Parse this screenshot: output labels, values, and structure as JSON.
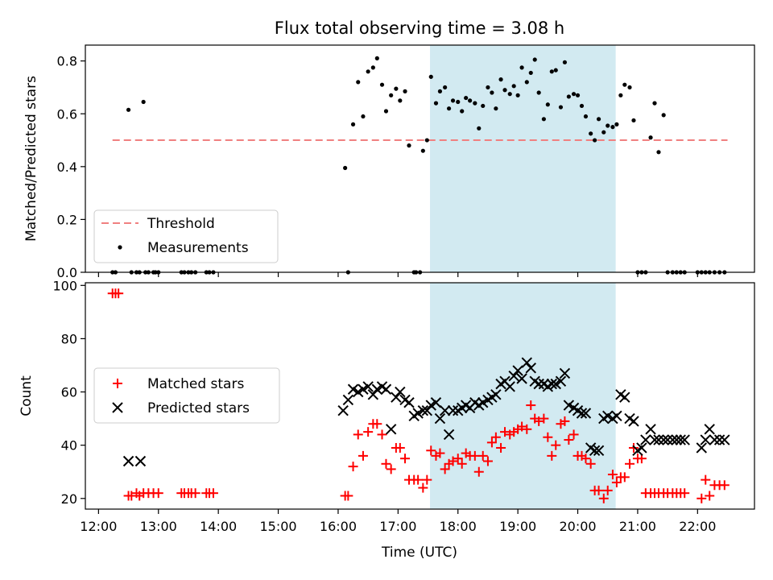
{
  "title": "Flux total observing time = 3.08 h",
  "chart_data": [
    {
      "type": "scatter",
      "ylabel": "Matched/Predicted stars",
      "xlabel": "",
      "xlim": [
        11.78,
        22.95
      ],
      "ylim": [
        0,
        0.86
      ],
      "y_ticks": [
        0.0,
        0.2,
        0.4,
        0.6,
        0.8
      ],
      "y_tick_labels": [
        "0.0",
        "0.2",
        "0.4",
        "0.6",
        "0.8"
      ],
      "shaded_x_range": [
        "17:32",
        "20:38"
      ],
      "shade_color": "#add8e6",
      "legend_position": "lower-left",
      "threshold": {
        "name": "Threshold",
        "y": 0.5,
        "x_range": [
          "12:14",
          "22:30"
        ],
        "color": "#f08080"
      },
      "series": [
        {
          "name": "Measurements",
          "color": "#000000",
          "marker": "dot",
          "x": [
            "12:14",
            "12:17",
            "12:30",
            "12:33",
            "12:38",
            "12:41",
            "12:45",
            "12:47",
            "12:50",
            "12:55",
            "12:57",
            "13:00",
            "13:23",
            "13:26",
            "13:30",
            "13:33",
            "13:37",
            "13:48",
            "13:51",
            "13:55",
            "16:07",
            "16:10",
            "16:15",
            "16:20",
            "16:25",
            "16:30",
            "16:35",
            "16:39",
            "16:44",
            "16:48",
            "16:53",
            "16:58",
            "17:02",
            "17:07",
            "17:11",
            "17:16",
            "17:18",
            "17:22",
            "17:25",
            "17:29",
            "17:33",
            "17:38",
            "17:42",
            "17:47",
            "17:51",
            "17:55",
            "18:00",
            "18:04",
            "18:08",
            "18:12",
            "18:17",
            "18:21",
            "18:25",
            "18:30",
            "18:34",
            "18:38",
            "18:43",
            "18:47",
            "18:52",
            "18:56",
            "19:00",
            "19:04",
            "19:09",
            "19:13",
            "19:17",
            "19:21",
            "19:26",
            "19:30",
            "19:34",
            "19:38",
            "19:43",
            "19:47",
            "19:51",
            "19:56",
            "20:00",
            "20:04",
            "20:08",
            "20:13",
            "20:17",
            "20:21",
            "20:26",
            "20:30",
            "20:35",
            "20:39",
            "20:43",
            "20:47",
            "20:52",
            "20:56",
            "21:00",
            "21:04",
            "21:08",
            "21:13",
            "21:17",
            "21:21",
            "21:26",
            "21:30",
            "21:35",
            "21:39",
            "21:43",
            "21:47",
            "22:00",
            "22:04",
            "22:08",
            "22:12",
            "22:17",
            "22:22",
            "22:27"
          ],
          "y": [
            0,
            0,
            0.615,
            0,
            0,
            0,
            0.645,
            0,
            0,
            0,
            0,
            0,
            0,
            0,
            0,
            0,
            0,
            0,
            0,
            0,
            0.395,
            0,
            0.56,
            0.72,
            0.59,
            0.76,
            0.775,
            0.81,
            0.71,
            0.61,
            0.67,
            0.695,
            0.65,
            0.685,
            0.48,
            0,
            0,
            0,
            0.46,
            0.5,
            0.74,
            0.64,
            0.685,
            0.7,
            0.62,
            0.65,
            0.645,
            0.61,
            0.66,
            0.65,
            0.64,
            0.545,
            0.63,
            0.7,
            0.68,
            0.62,
            0.73,
            0.69,
            0.675,
            0.705,
            0.67,
            0.775,
            0.72,
            0.755,
            0.805,
            0.68,
            0.58,
            0.635,
            0.76,
            0.765,
            0.625,
            0.795,
            0.665,
            0.675,
            0.67,
            0.63,
            0.59,
            0.525,
            0.5,
            0.58,
            0.53,
            0.555,
            0.55,
            0.56,
            0.67,
            0.71,
            0.7,
            0.575,
            0,
            0,
            0,
            0.51,
            0.64,
            0.455,
            0.595,
            0,
            0,
            0,
            0,
            0,
            0,
            0,
            0,
            0,
            0,
            0,
            0
          ]
        }
      ]
    },
    {
      "type": "scatter",
      "ylabel": "Count",
      "xlabel": "Time (UTC)",
      "xlim": [
        11.78,
        22.95
      ],
      "ylim": [
        16,
        101
      ],
      "y_ticks": [
        20,
        40,
        60,
        80,
        100
      ],
      "y_tick_labels": [
        "20",
        "40",
        "60",
        "80",
        "100"
      ],
      "x_ticks": [
        12,
        13,
        14,
        15,
        16,
        17,
        18,
        19,
        20,
        21,
        22
      ],
      "x_tick_labels": [
        "12:00",
        "13:00",
        "14:00",
        "15:00",
        "16:00",
        "17:00",
        "18:00",
        "19:00",
        "20:00",
        "21:00",
        "22:00"
      ],
      "shaded_x_range": [
        "17:32",
        "20:38"
      ],
      "shade_color": "#add8e6",
      "legend_position": "center-left",
      "series": [
        {
          "name": "Matched stars",
          "color": "#ff0000",
          "marker": "plus",
          "x": [
            "12:14",
            "12:17",
            "12:20",
            "12:30",
            "12:33",
            "12:38",
            "12:41",
            "12:45",
            "12:50",
            "12:55",
            "13:00",
            "13:23",
            "13:26",
            "13:30",
            "13:33",
            "13:37",
            "13:48",
            "13:51",
            "13:55",
            "16:07",
            "16:10",
            "16:15",
            "16:20",
            "16:25",
            "16:30",
            "16:35",
            "16:39",
            "16:44",
            "16:48",
            "16:53",
            "16:58",
            "17:02",
            "17:07",
            "17:11",
            "17:16",
            "17:20",
            "17:25",
            "17:29",
            "17:33",
            "17:38",
            "17:42",
            "17:47",
            "17:51",
            "17:55",
            "18:00",
            "18:04",
            "18:08",
            "18:12",
            "18:17",
            "18:21",
            "18:25",
            "18:30",
            "18:34",
            "18:38",
            "18:43",
            "18:47",
            "18:52",
            "18:56",
            "19:00",
            "19:04",
            "19:09",
            "19:13",
            "19:17",
            "19:21",
            "19:26",
            "19:30",
            "19:34",
            "19:38",
            "19:43",
            "19:47",
            "19:51",
            "19:56",
            "20:00",
            "20:04",
            "20:08",
            "20:13",
            "20:17",
            "20:21",
            "20:26",
            "20:30",
            "20:35",
            "20:39",
            "20:43",
            "20:47",
            "20:52",
            "20:56",
            "21:00",
            "21:04",
            "21:08",
            "21:13",
            "21:17",
            "21:21",
            "21:26",
            "21:30",
            "21:35",
            "21:39",
            "21:43",
            "21:47",
            "22:04",
            "22:08",
            "22:12",
            "22:17",
            "22:22",
            "22:27"
          ],
          "y": [
            97,
            97,
            97,
            21,
            21,
            22,
            21,
            22,
            22,
            22,
            22,
            22,
            22,
            22,
            22,
            22,
            22,
            22,
            22,
            21,
            21,
            32,
            44,
            36,
            45,
            48,
            48,
            44,
            33,
            31,
            39,
            39,
            35,
            27,
            27,
            27,
            24,
            27,
            38,
            36,
            37,
            31,
            33,
            34,
            35,
            33,
            37,
            36,
            36,
            30,
            36,
            34,
            41,
            43,
            39,
            45,
            44,
            45,
            46,
            47,
            46,
            55,
            50,
            49,
            50,
            43,
            36,
            40,
            48,
            49,
            42,
            44,
            36,
            36,
            35,
            33,
            23,
            23,
            20,
            23,
            29,
            26,
            28,
            28,
            33,
            39,
            35,
            35,
            22,
            22,
            22,
            22,
            22,
            22,
            22,
            22,
            22,
            22,
            20,
            27,
            21,
            25,
            25,
            25
          ],
          "x_extra_note": ""
        },
        {
          "name": "Predicted stars",
          "color": "#000000",
          "marker": "cross",
          "x": [
            "12:30",
            "12:42",
            "16:05",
            "16:10",
            "16:15",
            "16:20",
            "16:25",
            "16:30",
            "16:35",
            "16:39",
            "16:44",
            "16:48",
            "16:53",
            "16:58",
            "17:02",
            "17:07",
            "17:11",
            "17:16",
            "17:20",
            "17:25",
            "17:29",
            "17:33",
            "17:38",
            "17:42",
            "17:47",
            "17:51",
            "17:55",
            "18:00",
            "18:04",
            "18:08",
            "18:12",
            "18:17",
            "18:21",
            "18:25",
            "18:30",
            "18:34",
            "18:38",
            "18:43",
            "18:47",
            "18:52",
            "18:56",
            "19:00",
            "19:04",
            "19:09",
            "19:13",
            "19:17",
            "19:21",
            "19:26",
            "19:30",
            "19:34",
            "19:38",
            "19:43",
            "19:47",
            "19:51",
            "19:56",
            "20:00",
            "20:04",
            "20:08",
            "20:13",
            "20:17",
            "20:21",
            "20:26",
            "20:30",
            "20:35",
            "20:39",
            "20:43",
            "20:47",
            "20:52",
            "20:56",
            "21:00",
            "21:04",
            "21:08",
            "21:13",
            "21:17",
            "21:21",
            "21:26",
            "21:30",
            "21:35",
            "21:39",
            "21:43",
            "21:47",
            "22:04",
            "22:08",
            "22:12",
            "22:17",
            "22:22",
            "22:27"
          ],
          "y": [
            34,
            34,
            53,
            57,
            61,
            60,
            61,
            62,
            59,
            61,
            62,
            61,
            46,
            58,
            60,
            57,
            56,
            51,
            52,
            53,
            53,
            55,
            56,
            50,
            53,
            44,
            53,
            53,
            54,
            55,
            54,
            56,
            55,
            56,
            57,
            58,
            59,
            63,
            64,
            62,
            66,
            68,
            65,
            71,
            69,
            64,
            63,
            63,
            62,
            63,
            63,
            64,
            67,
            55,
            54,
            53,
            52,
            52,
            39,
            38,
            38,
            50,
            51,
            50,
            51,
            59,
            58,
            50,
            49,
            38,
            39,
            42,
            46,
            42,
            42,
            42,
            42,
            42,
            42,
            42,
            42,
            39,
            42,
            46,
            42,
            42,
            42
          ]
        }
      ]
    }
  ]
}
